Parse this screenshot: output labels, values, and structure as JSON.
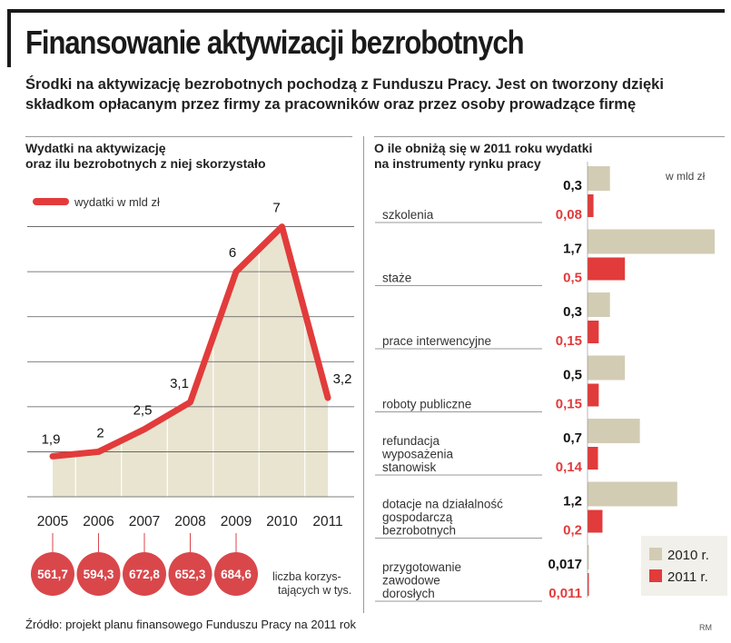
{
  "title": "Finansowanie aktywizacji bezrobotnych",
  "lead": {
    "line1": "Środki na aktywizację bezrobotnych pochodzą z Funduszu Pracy. Jest on tworzony dzięki",
    "line2": "składkom opłacanym przez firmy za pracowników oraz przez osoby prowadzące firmę"
  },
  "source": "Źródło: projekt planu finansowego Funduszu Pracy na 2011 rok",
  "credit": "RM",
  "colors": {
    "line": "#e23b3b",
    "area": "#e8e4d0",
    "bar2010": "#d3ccb4",
    "bar2011": "#e23b3b",
    "bubble": "#d9474b"
  },
  "chart_data": [
    {
      "type": "line",
      "title_line1": "Wydatki na aktywizację",
      "title_line2": "oraz ilu bezrobotnych z niej skorzystało",
      "legend": "wydatki w mld zł",
      "x": [
        "2005",
        "2006",
        "2007",
        "2008",
        "2009",
        "2010",
        "2011"
      ],
      "values": [
        1.9,
        2,
        2.5,
        3.1,
        6,
        7,
        3.2
      ],
      "value_labels": [
        "1,9",
        "2",
        "2,5",
        "3,1",
        "6",
        "7",
        "3,2"
      ],
      "ylim": [
        1,
        8
      ],
      "grid": true,
      "beneficiaries": {
        "values": [
          561.7,
          594.3,
          672.8,
          652.3,
          684.6
        ],
        "labels": [
          "561,7",
          "594,3",
          "672,8",
          "652,3",
          "684,6"
        ],
        "label_line1": "liczba korzys-",
        "label_line2": "tających w tys."
      }
    },
    {
      "type": "bar",
      "title_line1": "O ile obniżą się w 2011 roku wydatki",
      "title_line2": "na instrumenty rynku pracy",
      "unit": "w mld zł",
      "categories": [
        [
          "szkolenia"
        ],
        [
          "staże"
        ],
        [
          "prace interwencyjne"
        ],
        [
          "roboty publiczne"
        ],
        [
          "refundacja",
          "wyposażenia",
          "stanowisk"
        ],
        [
          "dotacje na działalność",
          "gospodarczą",
          "bezrobotnych"
        ],
        [
          "przygotowanie",
          "zawodowe",
          "dorosłych"
        ]
      ],
      "series": [
        {
          "name": "2010 r.",
          "values": [
            0.3,
            1.7,
            0.3,
            0.5,
            0.7,
            1.2,
            0.017
          ],
          "labels": [
            "0,3",
            "1,7",
            "0,3",
            "0,5",
            "0,7",
            "1,2",
            "0,017"
          ]
        },
        {
          "name": "2011 r.",
          "values": [
            0.08,
            0.5,
            0.15,
            0.15,
            0.14,
            0.2,
            0.011
          ],
          "labels": [
            "0,08",
            "0,5",
            "0,15",
            "0,15",
            "0,14",
            "0,2",
            "0,011"
          ]
        }
      ],
      "xlim": [
        0,
        1.7
      ],
      "legend_position": "bottom-right"
    }
  ]
}
